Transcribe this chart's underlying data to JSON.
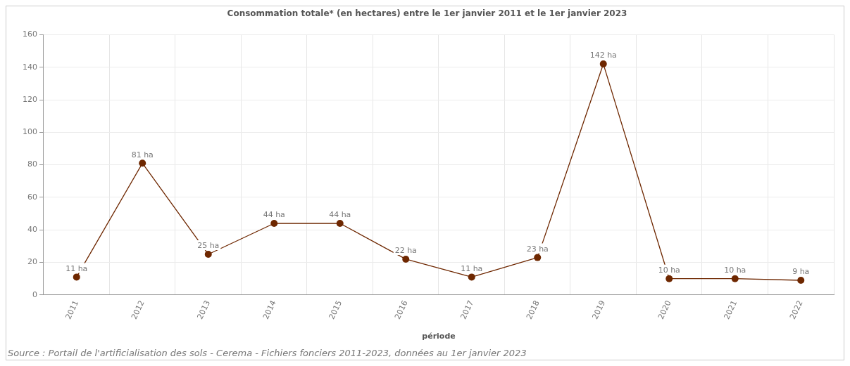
{
  "chart_data": {
    "type": "line",
    "title": "Consommation totale* (en hectares) entre le 1er janvier 2011 et le 1er janvier 2023",
    "xlabel": "période",
    "categories": [
      "2011",
      "2012",
      "2013",
      "2014",
      "2015",
      "2016",
      "2017",
      "2018",
      "2019",
      "2020",
      "2021",
      "2022"
    ],
    "series": [
      {
        "color": "#6e2700",
        "values": [
          11,
          81,
          25,
          44,
          44,
          22,
          11,
          23,
          142,
          10,
          10,
          9
        ],
        "value_labels": [
          "11 ha",
          "81 ha",
          "25 ha",
          "44 ha",
          "44 ha",
          "22 ha",
          "11 ha",
          "23 ha",
          "142 ha",
          "10 ha",
          "10 ha",
          "9 ha"
        ]
      }
    ],
    "ylim": [
      0,
      160
    ],
    "yticks": [
      0,
      20,
      40,
      60,
      80,
      100,
      120,
      140,
      160
    ],
    "grid": true,
    "legend": false,
    "marker": "circle",
    "line_style": "solid",
    "annotations": [
      "Source : Portail de l'artificialisation des sols - Cerema - Fichiers fonciers 2011-2023, données au 1er janvier 2023"
    ]
  }
}
